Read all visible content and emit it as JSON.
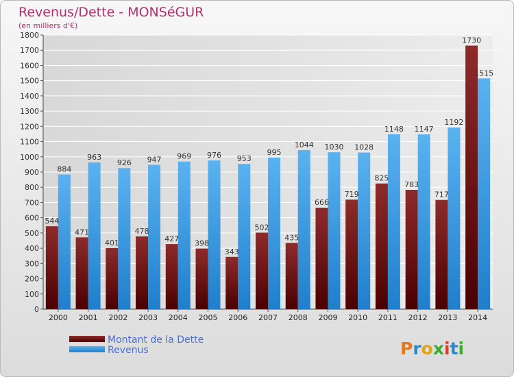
{
  "title": "Revenus/Dette - MONSéGUR",
  "subtitle": "(en milliers d'€)",
  "logo": "Proxiti",
  "colors": {
    "dette": "#7a1a1a",
    "revenus": "#3a9ce2",
    "title": "#b5306a",
    "grid": "#ffffff"
  },
  "chart_data": {
    "type": "bar",
    "title": "Revenus/Dette - MONSéGUR",
    "subtitle": "(en milliers d'€)",
    "ylim": [
      0,
      1800
    ],
    "ytick_step": 100,
    "grid": true,
    "legend_position": "bottom-left",
    "categories": [
      "2000",
      "2001",
      "2002",
      "2003",
      "2004",
      "2005",
      "2006",
      "2007",
      "2008",
      "2009",
      "2010",
      "2011",
      "2012",
      "2013",
      "2014"
    ],
    "series": [
      {
        "name": "Montant de la Dette",
        "values": [
          544,
          471,
          401,
          478,
          427,
          398,
          343,
          502,
          435,
          666,
          719,
          825,
          783,
          717,
          1730
        ]
      },
      {
        "name": "Revenus",
        "values": [
          884,
          963,
          926,
          947,
          969,
          976,
          953,
          995,
          1044,
          1030,
          1028,
          1148,
          1147,
          1192,
          1515
        ]
      }
    ]
  }
}
